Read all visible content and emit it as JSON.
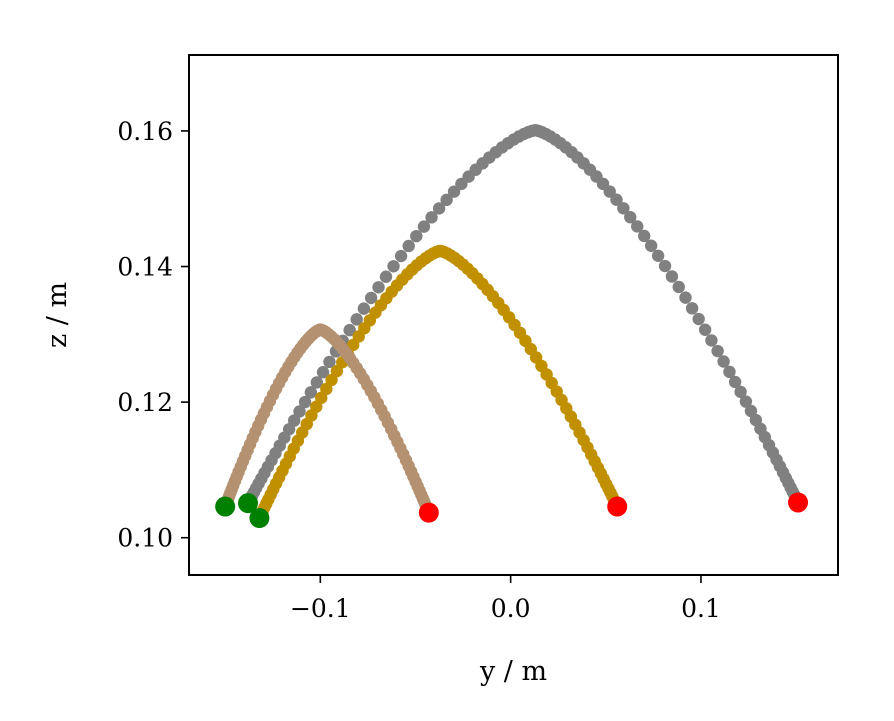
{
  "chart_data": {
    "type": "scatter",
    "xlabel": "y / m",
    "ylabel": "z / m",
    "xlim": [
      -0.169,
      0.172
    ],
    "ylim": [
      0.0945,
      0.1712
    ],
    "x_ticks": [
      {
        "value": -0.1,
        "label": "−0.1"
      },
      {
        "value": 0.0,
        "label": "0.0"
      },
      {
        "value": 0.1,
        "label": "0.1"
      }
    ],
    "y_ticks": [
      {
        "value": 0.1,
        "label": "0.10"
      },
      {
        "value": 0.12,
        "label": "0.12"
      },
      {
        "value": 0.14,
        "label": "0.14"
      },
      {
        "value": 0.16,
        "label": "0.16"
      }
    ],
    "grid": false,
    "series": [
      {
        "color": "#808080",
        "start": [
          -0.138,
          0.1051
        ],
        "peak": [
          0.013,
          0.1601
        ],
        "end": [
          0.151,
          0.1052
        ],
        "points": 110,
        "start_marker_color": "#008000",
        "end_marker_color": "#ff0000"
      },
      {
        "color": "#c09000",
        "start": [
          -0.132,
          0.1029
        ],
        "peak": [
          -0.037,
          0.1423
        ],
        "end": [
          0.056,
          0.1046
        ],
        "points": 95,
        "start_marker_color": "#008000",
        "end_marker_color": "#ff0000"
      },
      {
        "color": "#b49170",
        "start": [
          -0.15,
          0.1046
        ],
        "peak": [
          -0.1,
          0.1307
        ],
        "end": [
          -0.043,
          0.1037
        ],
        "points": 90,
        "start_marker_color": "#008000",
        "end_marker_color": "#ff0000"
      }
    ]
  }
}
